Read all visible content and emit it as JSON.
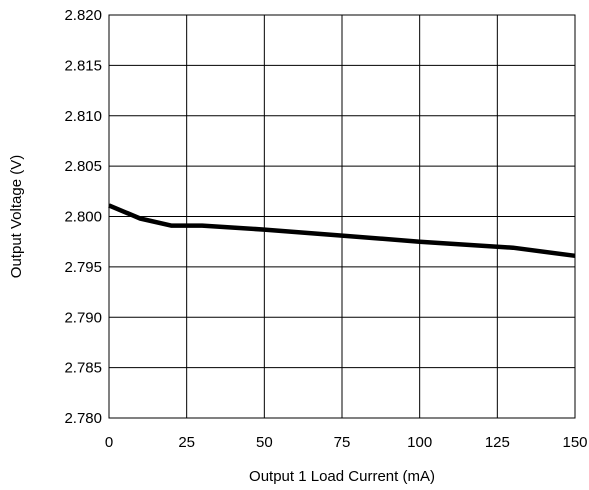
{
  "chart_data": {
    "type": "line",
    "title": "",
    "xlabel": "Output 1 Load Current (mA)",
    "ylabel": "Output Voltage (V)",
    "xlim": [
      0,
      150
    ],
    "ylim": [
      2.78,
      2.82
    ],
    "x_ticks": [
      0,
      25,
      50,
      75,
      100,
      125,
      150
    ],
    "x_tick_labels": [
      "0",
      "25",
      "50",
      "75",
      "100",
      "125",
      "150"
    ],
    "y_ticks": [
      2.78,
      2.785,
      2.79,
      2.795,
      2.8,
      2.805,
      2.81,
      2.815,
      2.82
    ],
    "y_tick_labels": [
      "2.780",
      "2.785",
      "2.790",
      "2.795",
      "2.800",
      "2.805",
      "2.810",
      "2.815",
      "2.820"
    ],
    "grid": true,
    "legend": "none",
    "series": [
      {
        "color": "#000000",
        "x": [
          0,
          10,
          20,
          30,
          50,
          75,
          100,
          130,
          150
        ],
        "y": [
          2.8011,
          2.7998,
          2.7991,
          2.7991,
          2.7987,
          2.7981,
          2.7975,
          2.7969,
          2.7961
        ]
      }
    ]
  }
}
